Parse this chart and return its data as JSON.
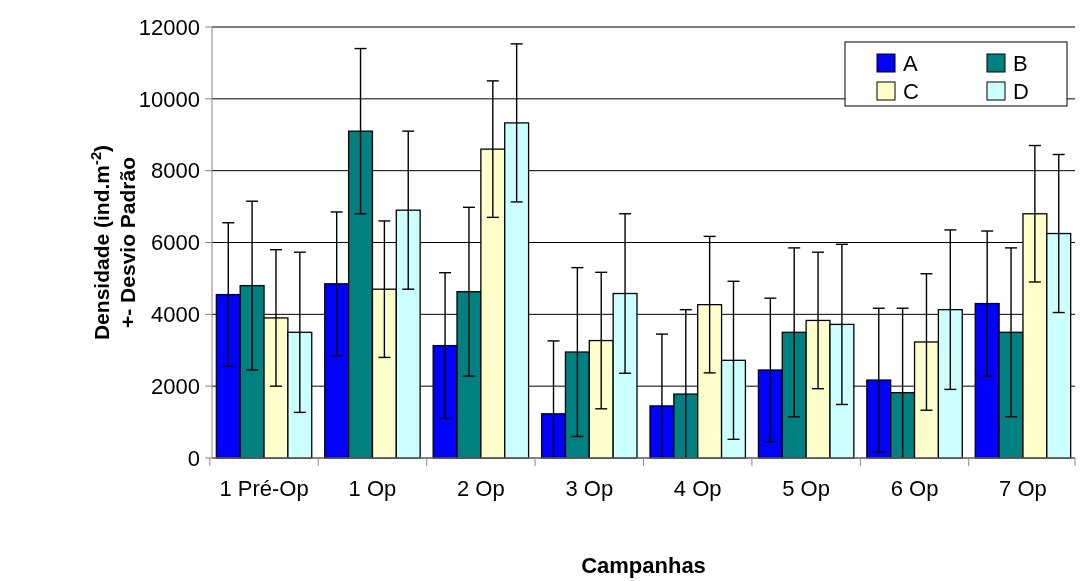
{
  "chart_data": {
    "type": "bar",
    "xlabel": "Campanhas",
    "ylabel": "Densidade (ind.m$^{-2}$)\n+- Desvio Padrão",
    "categories": [
      "1 Pré-Op",
      "1 Op",
      "2 Op",
      "3 Op",
      "4 Op",
      "5 Op",
      "6 Op",
      "7 Op"
    ],
    "series": [
      {
        "name": "A",
        "color": "#0000ff",
        "values": [
          4550,
          4850,
          3130,
          1230,
          1450,
          2450,
          2170,
          4300
        ],
        "errors": [
          2000,
          2000,
          2030,
          2030,
          2000,
          2000,
          2000,
          2020
        ]
      },
      {
        "name": "B",
        "color": "#008080",
        "values": [
          4800,
          9100,
          4630,
          2950,
          1780,
          3500,
          1820,
          3500
        ],
        "errors": [
          2350,
          2300,
          2350,
          2350,
          2350,
          2350,
          2350,
          2350
        ]
      },
      {
        "name": "C",
        "color": "#ffffcc",
        "values": [
          3900,
          4700,
          8600,
          3270,
          4270,
          3830,
          3230,
          6800
        ],
        "errors": [
          1900,
          1900,
          1900,
          1900,
          1900,
          1900,
          1900,
          1900
        ]
      },
      {
        "name": "D",
        "color": "#ccffff",
        "values": [
          3500,
          6900,
          9330,
          4580,
          2720,
          3720,
          4130,
          6250
        ],
        "errors": [
          2230,
          2200,
          2200,
          2220,
          2200,
          2230,
          2220,
          2200
        ]
      }
    ],
    "ylim": [
      0,
      12000
    ],
    "yticks": [
      0,
      2000,
      4000,
      6000,
      8000,
      10000,
      12000
    ],
    "grid": "y",
    "legend": "top right"
  }
}
